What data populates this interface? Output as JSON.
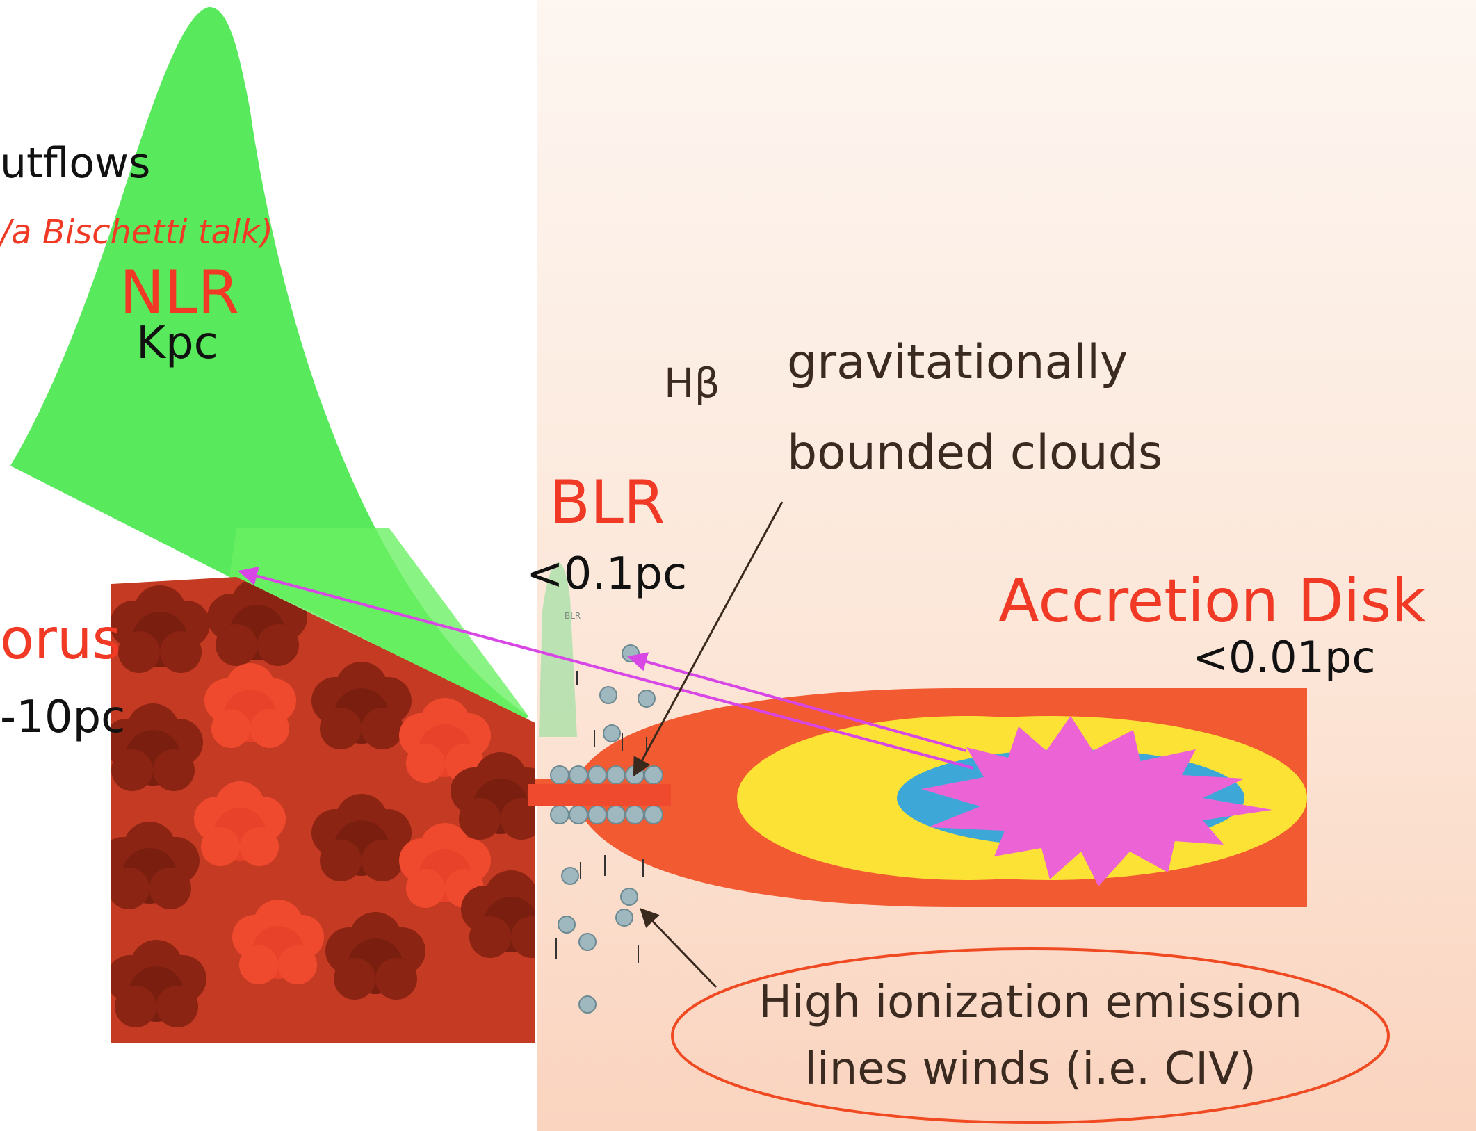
{
  "labels": {
    "outflows": "utflows",
    "bischetti": "/a Bischetti talk)",
    "nlr": "NLR",
    "nlr_scale": "Kpc",
    "torus": "orus",
    "torus_scale": "-10pc",
    "hbeta": "Hβ",
    "grav_line1": "gravitationally",
    "grav_line2": "bounded clouds",
    "blr": "BLR",
    "blr_scale": "<0.1pc",
    "blr_tiny": "BLR",
    "disk": "Accretion Disk",
    "disk_scale": "<0.01pc",
    "high_line1": "High ionization emission",
    "high_line2": "lines winds (i.e. CIV)"
  },
  "colors": {
    "text_red": "#f03a26",
    "cone_green": "#46e84a",
    "torus_dark": "#8b2413",
    "torus_light": "#f04a2e",
    "disk_outer": "#f25a32",
    "disk_yellow": "#fde236",
    "star_magenta": "#ec63d6",
    "blob_blue": "#3da8d8",
    "cloud_grey": "#9fb7bf",
    "ellipse_stroke": "#f04a22",
    "arrow_dark": "#3a2a1e",
    "beam_magenta": "#d846e6"
  }
}
